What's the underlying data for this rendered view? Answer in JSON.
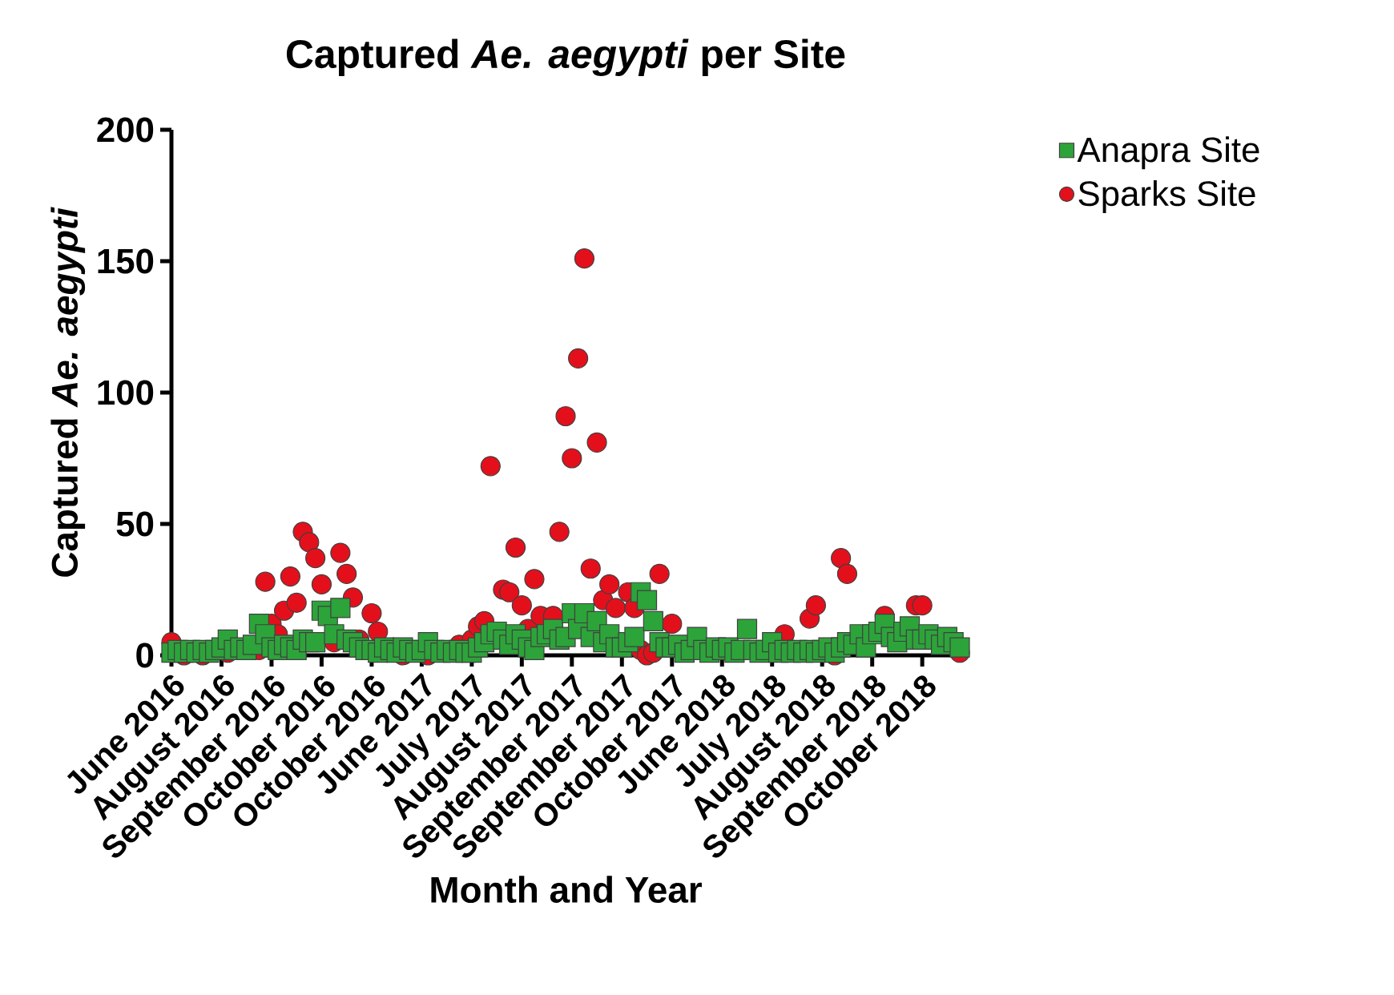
{
  "chart_data": {
    "type": "scatter",
    "title": "Captured *Ae. aegypti* per Site",
    "xlabel": "Month and Year",
    "ylabel": "Captured *Ae. aegypti*",
    "ylim": [
      0,
      200
    ],
    "yticks": [
      0,
      50,
      100,
      150,
      200
    ],
    "categories": [
      "June 2016",
      null,
      null,
      null,
      null,
      null,
      null,
      null,
      "August 2016",
      null,
      null,
      null,
      null,
      null,
      null,
      null,
      "September 2016",
      null,
      null,
      null,
      null,
      null,
      null,
      null,
      "October 2016",
      null,
      null,
      null,
      null,
      null,
      null,
      null,
      "October 2016",
      null,
      null,
      null,
      null,
      null,
      null,
      null,
      "June 2017",
      null,
      null,
      null,
      null,
      null,
      null,
      null,
      "July 2017",
      null,
      null,
      null,
      null,
      null,
      null,
      null,
      "August 2017",
      null,
      null,
      null,
      null,
      null,
      null,
      null,
      "September 2017",
      null,
      null,
      null,
      null,
      null,
      null,
      null,
      "September 2017",
      null,
      null,
      null,
      null,
      null,
      null,
      null,
      "October 2017",
      null,
      null,
      null,
      null,
      null,
      null,
      null,
      "June 2018",
      null,
      null,
      null,
      null,
      null,
      null,
      null,
      "July 2018",
      null,
      null,
      null,
      null,
      null,
      null,
      null,
      "August 2018",
      null,
      null,
      null,
      null,
      null,
      null,
      null,
      "September 2018",
      null,
      null,
      null,
      null,
      null,
      null,
      null,
      "October 2018",
      null,
      null,
      null,
      null,
      null,
      null
    ],
    "legend": "top right",
    "series": [
      {
        "name": "Anapra Site",
        "color": "#2ca43a",
        "marker": "square",
        "values": [
          1,
          2,
          1,
          2,
          1,
          2,
          1,
          2,
          3,
          6,
          2,
          3,
          2,
          4,
          12,
          8,
          3,
          2,
          4,
          3,
          2,
          6,
          5,
          5,
          17,
          15,
          8,
          18,
          6,
          5,
          3,
          2,
          2,
          1,
          3,
          2,
          1,
          3,
          2,
          1,
          2,
          5,
          2,
          1,
          2,
          1,
          2,
          1,
          1,
          3,
          5,
          8,
          9,
          6,
          4,
          8,
          6,
          3,
          2,
          7,
          8,
          10,
          6,
          7,
          16,
          10,
          16,
          7,
          13,
          5,
          8,
          3,
          3,
          5,
          7,
          24,
          21,
          13,
          5,
          3,
          3,
          4,
          1,
          2,
          7,
          2,
          1,
          3,
          2,
          3,
          1,
          2,
          10,
          2,
          1,
          2,
          5,
          1,
          2,
          1,
          2,
          1,
          2,
          1,
          2,
          3,
          1,
          3,
          5,
          4,
          8,
          3,
          8,
          9,
          12,
          7,
          5,
          9,
          11,
          6,
          6,
          8,
          6,
          4,
          7,
          5,
          3
        ]
      },
      {
        "name": "Sparks Site",
        "color": "#e3101c",
        "marker": "circle",
        "values": [
          5,
          null,
          0,
          null,
          null,
          0,
          null,
          null,
          null,
          1,
          null,
          null,
          null,
          null,
          2,
          28,
          12,
          8,
          17,
          30,
          20,
          47,
          43,
          37,
          27,
          null,
          5,
          39,
          31,
          22,
          6,
          null,
          16,
          9,
          null,
          null,
          null,
          0,
          null,
          null,
          null,
          0,
          null,
          null,
          null,
          null,
          4,
          null,
          6,
          11,
          13,
          72,
          null,
          25,
          24,
          41,
          19,
          10,
          29,
          15,
          null,
          15,
          47,
          91,
          75,
          113,
          151,
          33,
          81,
          21,
          27,
          18,
          null,
          24,
          18,
          2,
          0,
          1,
          31,
          null,
          12,
          null,
          null,
          null,
          null,
          null,
          null,
          null,
          null,
          null,
          null,
          null,
          null,
          null,
          null,
          null,
          null,
          null,
          8,
          null,
          null,
          null,
          14,
          19,
          null,
          null,
          0,
          37,
          31,
          null,
          null,
          null,
          null,
          null,
          15,
          null,
          null,
          null,
          null,
          19,
          19,
          null,
          null,
          null,
          null,
          null,
          1
        ]
      }
    ]
  }
}
